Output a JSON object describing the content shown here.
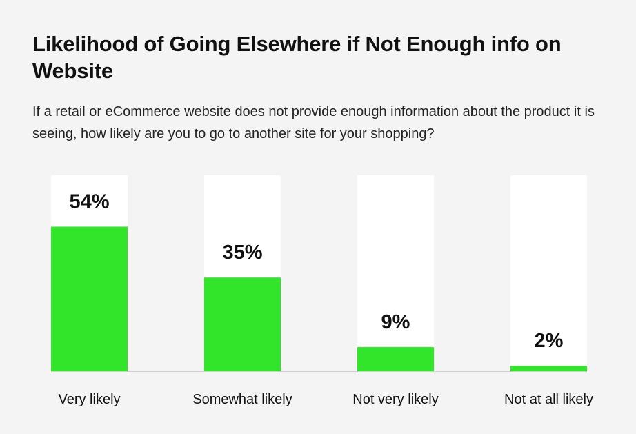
{
  "chart_data": {
    "type": "bar",
    "title": "Likelihood of Going Elsewhere if Not Enough info on Website",
    "subtitle": "If a retail or eCommerce website does not provide enough information about the product it is seeing, how likely are you to go to another site for your shopping?",
    "categories": [
      "Very likely",
      "Somewhat likely",
      "Not very likely",
      "Not at all likely"
    ],
    "values": [
      54,
      35,
      9,
      2
    ],
    "value_labels": [
      "54%",
      "35%",
      "9%",
      "2%"
    ],
    "ylim": [
      0,
      100
    ],
    "grid": false,
    "legend": "none",
    "colors": {
      "bar": "#33e52a",
      "track": "#ffffff",
      "baseline": "#cfcfcf",
      "background": "#f4f4f4"
    }
  }
}
